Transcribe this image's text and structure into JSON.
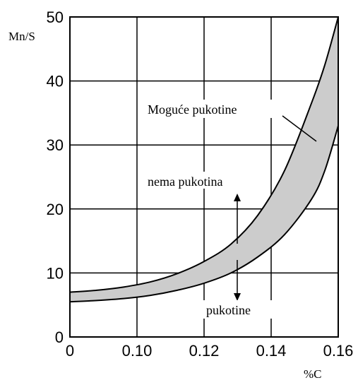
{
  "chart_data": {
    "type": "area",
    "xlabel": "%C",
    "ylabel": "Mn/S",
    "xlim": [
      0.06,
      0.16
    ],
    "ylim": [
      0,
      50
    ],
    "x_tick_labels": [
      "0",
      "0.10",
      "0.12",
      "0.14",
      "0.16"
    ],
    "y_tick_labels": [
      "0",
      "10",
      "20",
      "30",
      "40",
      "50"
    ],
    "grid": true,
    "band": {
      "x": [
        0.06,
        0.07,
        0.08,
        0.09,
        0.1,
        0.11,
        0.12,
        0.13,
        0.14,
        0.15,
        0.155,
        0.16
      ],
      "upper": [
        7.0,
        7.3,
        7.8,
        8.6,
        9.9,
        11.8,
        14.5,
        19.0,
        26.0,
        36.5,
        42.5,
        50.0
      ],
      "lower": [
        5.5,
        5.7,
        6.0,
        6.5,
        7.3,
        8.4,
        10.0,
        12.5,
        16.0,
        21.5,
        26.0,
        33.0
      ]
    },
    "annotations": {
      "band_label": "Moguće pukotine",
      "upper_region": "nema pukotina",
      "lower_region": "pukotine"
    }
  },
  "colors": {
    "band_fill": "#cccccc",
    "line": "#000000",
    "grid": "#000000"
  }
}
